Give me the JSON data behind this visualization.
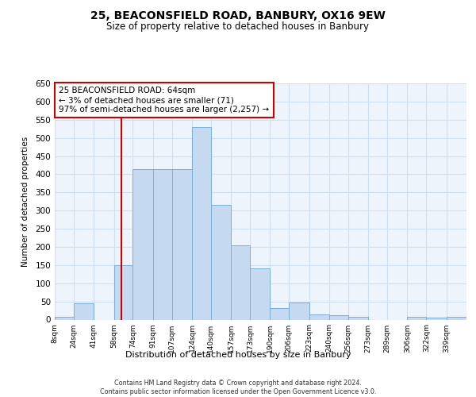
{
  "title": "25, BEACONSFIELD ROAD, BANBURY, OX16 9EW",
  "subtitle": "Size of property relative to detached houses in Banbury",
  "xlabel": "Distribution of detached houses by size in Banbury",
  "ylabel": "Number of detached properties",
  "bar_color": "#c5d9f0",
  "bar_edge_color": "#7aafd4",
  "grid_color": "#d0dff0",
  "background_color": "#eef4fc",
  "vline_x": 64,
  "vline_color": "#cc0000",
  "annotation_text": "25 BEACONSFIELD ROAD: 64sqm\n← 3% of detached houses are smaller (71)\n97% of semi-detached houses are larger (2,257) →",
  "annotation_box_color": "white",
  "annotation_box_edge_color": "#cc0000",
  "footer_text": "Contains HM Land Registry data © Crown copyright and database right 2024.\nContains public sector information licensed under the Open Government Licence v3.0.",
  "bin_labels": [
    "8sqm",
    "24sqm",
    "41sqm",
    "58sqm",
    "74sqm",
    "91sqm",
    "107sqm",
    "124sqm",
    "140sqm",
    "157sqm",
    "173sqm",
    "190sqm",
    "206sqm",
    "223sqm",
    "240sqm",
    "256sqm",
    "273sqm",
    "289sqm",
    "306sqm",
    "322sqm",
    "339sqm"
  ],
  "bin_edges": [
    8,
    24,
    41,
    58,
    74,
    91,
    107,
    124,
    140,
    157,
    173,
    190,
    206,
    223,
    240,
    256,
    273,
    289,
    306,
    322,
    339,
    356
  ],
  "bar_heights": [
    8,
    44,
    0,
    150,
    415,
    415,
    415,
    530,
    315,
    205,
    142,
    32,
    47,
    14,
    13,
    8,
    0,
    0,
    7,
    6,
    7
  ],
  "ylim": [
    0,
    650
  ],
  "yticks": [
    0,
    50,
    100,
    150,
    200,
    250,
    300,
    350,
    400,
    450,
    500,
    550,
    600,
    650
  ]
}
